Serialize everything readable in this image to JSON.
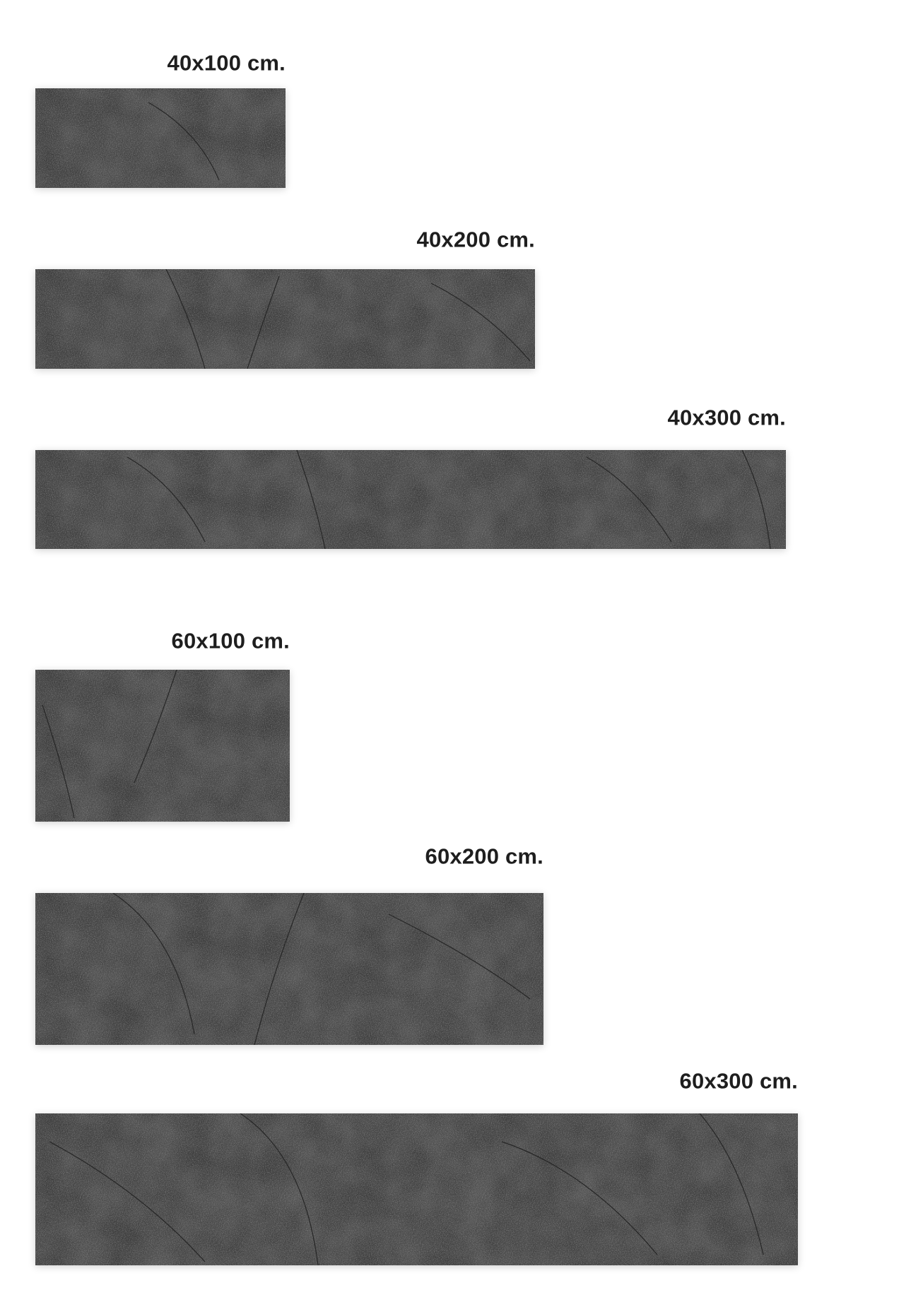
{
  "tiles": [
    {
      "label": "40x100 cm."
    },
    {
      "label": "40x200 cm."
    },
    {
      "label": "40x300 cm."
    },
    {
      "label": "60x100 cm."
    },
    {
      "label": "60x200 cm."
    },
    {
      "label": "60x300 cm."
    }
  ],
  "colors": {
    "tile": "#3b3b3b",
    "text": "#1e1e1e",
    "background": "#ffffff"
  }
}
